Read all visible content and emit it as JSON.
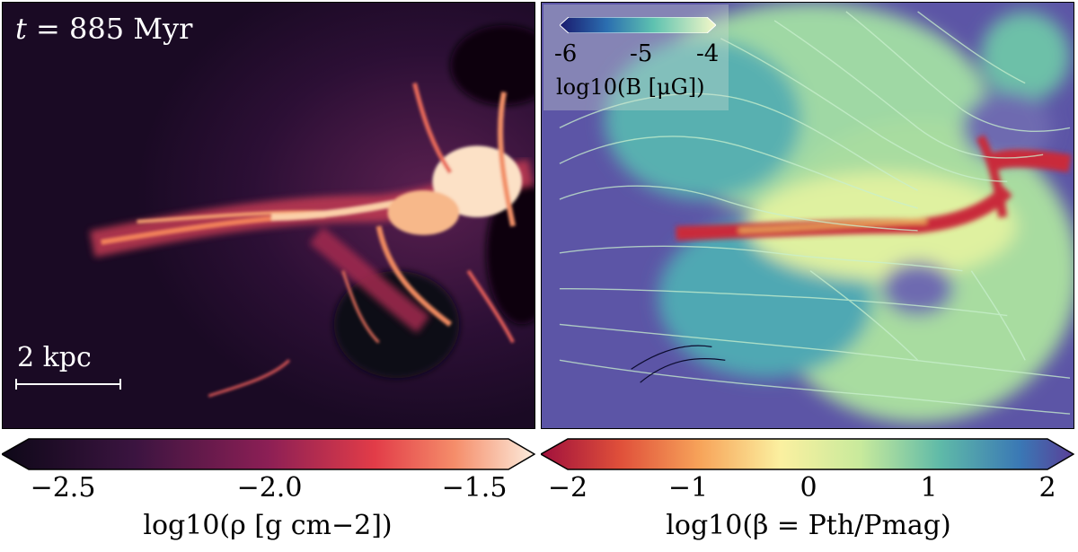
{
  "left_panel": {
    "time_prefix": "t",
    "time_value": "= 885 Myr",
    "scalebar_label": "2 kpc"
  },
  "right_panel": {
    "inset_colorbar": {
      "ticks": [
        "-6",
        "-5",
        "-4"
      ],
      "label": "log10(B [μG])"
    }
  },
  "colorbar_left": {
    "ticks": [
      "−2.5",
      "−2.0",
      "−1.5"
    ],
    "label": "log10(ρ [g cm−2])"
  },
  "colorbar_right": {
    "ticks": [
      "−2",
      "−1",
      "0",
      "1",
      "2"
    ],
    "label": "log10(β = Pth/Pmag)"
  }
}
